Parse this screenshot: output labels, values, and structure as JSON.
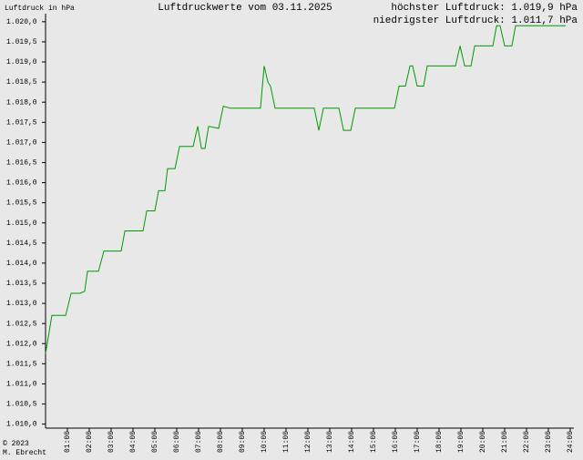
{
  "chart_data": {
    "type": "line",
    "title": "Luftdruckwerte vom 03.11.2025",
    "y_label": "Luftdruck in hPa",
    "annotations": [
      "höchster Luftdruck: 1.019,9 hPa",
      "niedrigster Luftdruck: 1.011,7 hPa"
    ],
    "footer": [
      "© 2023",
      "M. Ebrecht"
    ],
    "color": "#009900",
    "x": [
      0,
      0.29,
      0.92,
      1.17,
      1.58,
      1.79,
      1.92,
      2.42,
      2.67,
      3.46,
      3.63,
      4.46,
      4.63,
      5.0,
      5.17,
      5.46,
      5.58,
      5.92,
      6.13,
      6.75,
      6.96,
      7.13,
      7.29,
      7.46,
      7.92,
      8.13,
      8.46,
      9.83,
      10.0,
      10.17,
      10.29,
      10.5,
      12.29,
      12.5,
      12.71,
      13.42,
      13.63,
      13.96,
      14.17,
      15.96,
      16.17,
      16.46,
      16.67,
      16.79,
      17.0,
      17.29,
      17.46,
      18.75,
      18.96,
      19.17,
      19.46,
      19.63,
      20.46,
      20.63,
      20.79,
      21.0,
      21.33,
      21.5,
      23.79
    ],
    "values": [
      1011.75,
      1012.7,
      1012.7,
      1013.25,
      1013.25,
      1013.3,
      1013.8,
      1013.8,
      1014.3,
      1014.3,
      1014.8,
      1014.8,
      1015.3,
      1015.3,
      1015.8,
      1015.8,
      1016.35,
      1016.35,
      1016.9,
      1016.9,
      1017.4,
      1016.85,
      1016.85,
      1017.4,
      1017.35,
      1017.9,
      1017.85,
      1017.85,
      1018.9,
      1018.5,
      1018.4,
      1017.85,
      1017.85,
      1017.3,
      1017.85,
      1017.85,
      1017.3,
      1017.3,
      1017.85,
      1017.85,
      1018.4,
      1018.4,
      1018.9,
      1018.9,
      1018.4,
      1018.4,
      1018.9,
      1018.9,
      1019.4,
      1018.9,
      1018.9,
      1019.4,
      1019.4,
      1019.9,
      1019.9,
      1019.4,
      1019.4,
      1019.9,
      1019.9
    ],
    "xlim": [
      0,
      24
    ],
    "ylim": [
      1009.9,
      1020.2
    ],
    "xticks": [
      {
        "value": 1,
        "label": "01:00"
      },
      {
        "value": 2,
        "label": "02:00"
      },
      {
        "value": 3,
        "label": "03:00"
      },
      {
        "value": 4,
        "label": "04:00"
      },
      {
        "value": 5,
        "label": "05:00"
      },
      {
        "value": 6,
        "label": "06:00"
      },
      {
        "value": 7,
        "label": "07:00"
      },
      {
        "value": 8,
        "label": "08:00"
      },
      {
        "value": 9,
        "label": "09:00"
      },
      {
        "value": 10,
        "label": "10:00"
      },
      {
        "value": 11,
        "label": "11:00"
      },
      {
        "value": 12,
        "label": "12:00"
      },
      {
        "value": 13,
        "label": "13:00"
      },
      {
        "value": 14,
        "label": "14:00"
      },
      {
        "value": 15,
        "label": "15:00"
      },
      {
        "value": 16,
        "label": "16:00"
      },
      {
        "value": 17,
        "label": "17:00"
      },
      {
        "value": 18,
        "label": "18:00"
      },
      {
        "value": 19,
        "label": "19:00"
      },
      {
        "value": 20,
        "label": "20:00"
      },
      {
        "value": 21,
        "label": "21:00"
      },
      {
        "value": 22,
        "label": "22:00"
      },
      {
        "value": 23,
        "label": "23:00"
      },
      {
        "value": 24,
        "label": "24:00"
      }
    ],
    "yticks": [
      {
        "value": 1010,
        "label": "1.010,0"
      },
      {
        "value": 1010.5,
        "label": "1.010,5"
      },
      {
        "value": 1011,
        "label": "1.011,0"
      },
      {
        "value": 1011.5,
        "label": "1.011,5"
      },
      {
        "value": 1012,
        "label": "1.012,0"
      },
      {
        "value": 1012.5,
        "label": "1.012,5"
      },
      {
        "value": 1013,
        "label": "1.013,0"
      },
      {
        "value": 1013.5,
        "label": "1.013,5"
      },
      {
        "value": 1014,
        "label": "1.014,0"
      },
      {
        "value": 1014.5,
        "label": "1.014,5"
      },
      {
        "value": 1015,
        "label": "1.015,0"
      },
      {
        "value": 1015.5,
        "label": "1.015,5"
      },
      {
        "value": 1016,
        "label": "1.016,0"
      },
      {
        "value": 1016.5,
        "label": "1.016,5"
      },
      {
        "value": 1017,
        "label": "1.017,0"
      },
      {
        "value": 1017.5,
        "label": "1.017,5"
      },
      {
        "value": 1018,
        "label": "1.018,0"
      },
      {
        "value": 1018.5,
        "label": "1.018,5"
      },
      {
        "value": 1019,
        "label": "1.019,0"
      },
      {
        "value": 1019.5,
        "label": "1.019,5"
      },
      {
        "value": 1020,
        "label": "1.020,0"
      }
    ],
    "grid": false
  }
}
